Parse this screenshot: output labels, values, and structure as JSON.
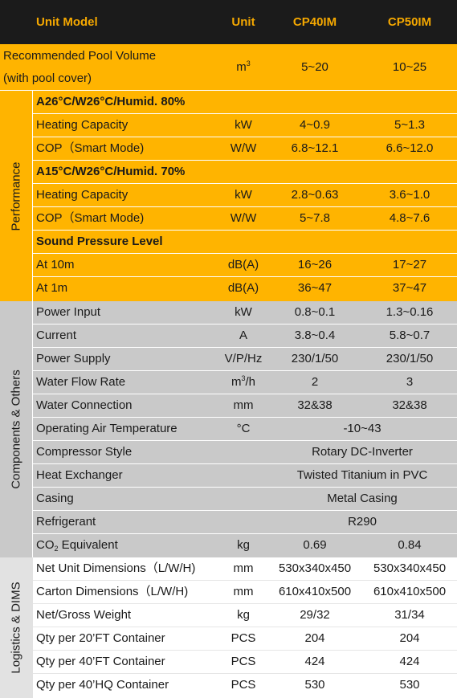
{
  "header": {
    "model": "Unit Model",
    "unit": "Unit",
    "cp40": "CP40IM",
    "cp50": "CP50IM"
  },
  "pool": {
    "line1": "Recommended Pool Volume",
    "line2": "(with pool cover)",
    "unit_base": "m",
    "unit_sup": "3",
    "cp40": "5~20",
    "cp50": "10~25"
  },
  "performance": {
    "side_label": "Performance",
    "cond1": "A26°C/W26°C/Humid. 80%",
    "heat1": {
      "name": "Heating Capacity",
      "unit": "kW",
      "cp40": "4~0.9",
      "cp50": "5~1.3"
    },
    "cop1": {
      "name": "COP（Smart Mode)",
      "unit": "W/W",
      "cp40": "6.8~12.1",
      "cp50": "6.6~12.0"
    },
    "cond2": "A15°C/W26°C/Humid. 70%",
    "heat2": {
      "name": "Heating Capacity",
      "unit": "kW",
      "cp40": "2.8~0.63",
      "cp50": "3.6~1.0"
    },
    "cop2": {
      "name": "COP（Smart Mode)",
      "unit": "W/W",
      "cp40": "5~7.8",
      "cp50": "4.8~7.6"
    },
    "sound": "Sound Pressure Level",
    "at10": {
      "name": "At 10m",
      "unit": "dB(A)",
      "cp40": "16~26",
      "cp50": "17~27"
    },
    "at1": {
      "name": "At 1m",
      "unit": "dB(A)",
      "cp40": "36~47",
      "cp50": "37~47"
    }
  },
  "components": {
    "side_label": "Components & Others",
    "power_input": {
      "name": "Power Input",
      "unit": "kW",
      "cp40": "0.8~0.1",
      "cp50": "1.3~0.16"
    },
    "current": {
      "name": "Current",
      "unit": "A",
      "cp40": "3.8~0.4",
      "cp50": "5.8~0.7"
    },
    "power_supply": {
      "name": "Power Supply",
      "unit": "V/P/Hz",
      "cp40": "230/1/50",
      "cp50": "230/1/50"
    },
    "water_flow": {
      "name": "Water Flow Rate",
      "unit_base": "m",
      "unit_sup": "3",
      "unit_tail": "/h",
      "cp40": "2",
      "cp50": "3"
    },
    "water_conn": {
      "name": "Water Connection",
      "unit": "mm",
      "cp40": "32&38",
      "cp50": "32&38"
    },
    "air_temp": {
      "name": "Operating Air Temperature",
      "unit": "°C",
      "value": "-10~43"
    },
    "compressor": {
      "name": "Compressor Style",
      "value": "Rotary DC-Inverter"
    },
    "exchanger": {
      "name": "Heat Exchanger",
      "value": "Twisted Titanium in PVC"
    },
    "casing": {
      "name": "Casing",
      "value": "Metal Casing"
    },
    "refrigerant": {
      "name": "Refrigerant",
      "value": "R290"
    },
    "co2": {
      "name_base": "CO",
      "name_sub": "2",
      "name_tail": " Equivalent",
      "unit": "kg",
      "cp40": "0.69",
      "cp50": "0.84"
    }
  },
  "logistics": {
    "side_label": "Logistics & DIMS",
    "net_dim": {
      "name": "Net Unit Dimensions（L/W/H)",
      "unit": "mm",
      "cp40": "530x340x450",
      "cp50": "530x340x450"
    },
    "carton_dim": {
      "name": "Carton Dimensions（L/W/H)",
      "unit": "mm",
      "cp40": "610x410x500",
      "cp50": "610x410x500"
    },
    "weight": {
      "name": "Net/Gross Weight",
      "unit": "kg",
      "cp40": "29/32",
      "cp50": "31/34"
    },
    "qty20": {
      "name": "Qty per 20’FT Container",
      "unit": "PCS",
      "cp40": "204",
      "cp50": "204"
    },
    "qty40": {
      "name": "Qty per 40’FT Container",
      "unit": "PCS",
      "cp40": "424",
      "cp50": "424"
    },
    "qty40hq": {
      "name": "Qty per 40’HQ Container",
      "unit": "PCS",
      "cp40": "530",
      "cp50": "530"
    }
  },
  "colors": {
    "header_bg": "#1b1b1b",
    "header_text": "#f5a800",
    "performance_bg": "#ffb400",
    "components_bg": "#c9c9c9"
  }
}
